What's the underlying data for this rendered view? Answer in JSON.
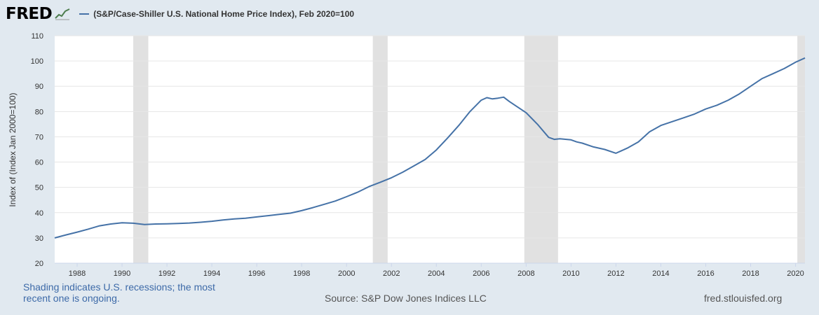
{
  "header": {
    "logo_text": "FRED",
    "legend_label": "(S&P/Case-Shiller U.S. National Home Price Index), Feb 2020=100"
  },
  "footer": {
    "recession_note": "Shading indicates U.S. recessions; the most recent one is ongoing.",
    "source": "Source: S&P Dow Jones Indices LLC",
    "site": "fred.stlouisfed.org"
  },
  "colors": {
    "line": "#4572a7",
    "recession": "#e1e1e1",
    "background": "#e1e9f0",
    "plot": "#ffffff"
  },
  "chart_data": {
    "type": "line",
    "title": "",
    "xlabel": "",
    "ylabel": "Index of (Index Jan 2000=100)",
    "ylim": [
      20,
      110
    ],
    "yticks": [
      20,
      30,
      40,
      50,
      60,
      70,
      80,
      90,
      100,
      110
    ],
    "xlim": [
      1987.0,
      2020.42
    ],
    "xticks": [
      "1988",
      "1990",
      "1992",
      "1994",
      "1996",
      "1998",
      "2000",
      "2002",
      "2004",
      "2006",
      "2008",
      "2010",
      "2012",
      "2014",
      "2016",
      "2018",
      "2020"
    ],
    "grid": true,
    "legend": "top",
    "recessions": [
      [
        1990.5,
        1991.17
      ],
      [
        2001.17,
        2001.83
      ],
      [
        2007.92,
        2009.42
      ],
      [
        2020.08,
        2020.42
      ]
    ],
    "series": [
      {
        "name": "(S&P/Case-Shiller U.S. National Home Price Index), Feb 2020=100",
        "x": [
          1987.0,
          1987.5,
          1988.0,
          1988.5,
          1989.0,
          1989.5,
          1990.0,
          1990.5,
          1991.0,
          1991.5,
          1992.0,
          1992.5,
          1993.0,
          1993.5,
          1994.0,
          1994.5,
          1995.0,
          1995.5,
          1996.0,
          1996.5,
          1997.0,
          1997.5,
          1998.0,
          1998.5,
          1999.0,
          1999.5,
          2000.0,
          2000.5,
          2001.0,
          2001.5,
          2002.0,
          2002.5,
          2003.0,
          2003.5,
          2004.0,
          2004.5,
          2005.0,
          2005.5,
          2006.0,
          2006.25,
          2006.5,
          2006.75,
          2007.0,
          2007.25,
          2007.5,
          2008.0,
          2008.5,
          2009.0,
          2009.25,
          2009.5,
          2010.0,
          2010.25,
          2010.5,
          2011.0,
          2011.5,
          2012.0,
          2012.25,
          2012.5,
          2013.0,
          2013.5,
          2014.0,
          2014.5,
          2015.0,
          2015.5,
          2016.0,
          2016.5,
          2017.0,
          2017.5,
          2018.0,
          2018.5,
          2019.0,
          2019.5,
          2020.0,
          2020.42
        ],
        "values": [
          30.0,
          31.2,
          32.3,
          33.5,
          34.8,
          35.5,
          36.0,
          35.8,
          35.3,
          35.5,
          35.6,
          35.7,
          35.9,
          36.2,
          36.6,
          37.1,
          37.5,
          37.8,
          38.3,
          38.8,
          39.3,
          39.8,
          40.8,
          42.0,
          43.3,
          44.6,
          46.3,
          48.1,
          50.3,
          52.0,
          53.8,
          56.0,
          58.5,
          61.0,
          64.8,
          69.5,
          74.5,
          80.0,
          84.5,
          85.5,
          85.0,
          85.3,
          85.7,
          84.0,
          82.5,
          79.5,
          75.0,
          69.8,
          69.0,
          69.2,
          68.8,
          68.0,
          67.5,
          66.0,
          65.0,
          63.5,
          64.5,
          65.5,
          68.0,
          72.0,
          74.5,
          76.0,
          77.5,
          79.0,
          81.0,
          82.5,
          84.5,
          87.0,
          90.0,
          93.0,
          95.0,
          97.0,
          99.5,
          101.2
        ]
      }
    ]
  }
}
